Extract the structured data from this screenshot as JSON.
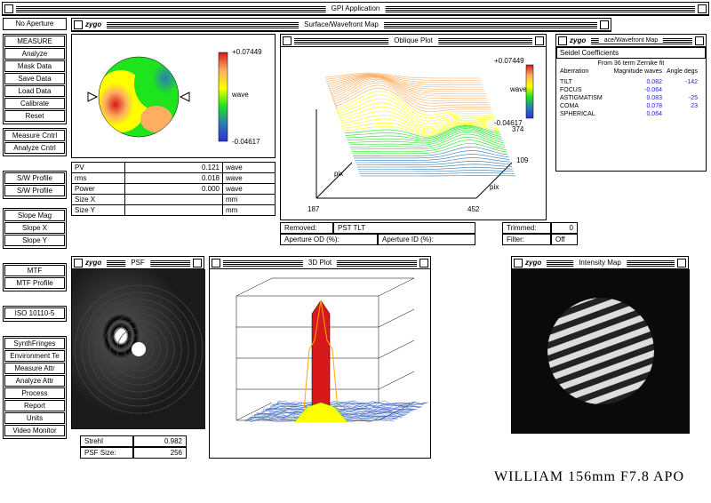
{
  "app": {
    "title": "GPI Application"
  },
  "aperture_label": "No Aperture",
  "left_buttons": {
    "g1": [
      "MEASURE",
      "Analyze",
      "Mask Data",
      "Save Data",
      "Load Data",
      "Calibrate",
      "Reset"
    ],
    "g2": [
      "Measure Cntrl",
      "Analyze Cntrl"
    ],
    "g3": [
      "S/W Profile",
      "S/W Profile"
    ],
    "g4": [
      "Slope Mag",
      "Slope X",
      "Slope Y"
    ],
    "g5": [
      "MTF",
      "MTF Profile"
    ],
    "g6": [
      "ISO 10110-5"
    ],
    "g7": [
      "SynthFringes",
      "Environment Te",
      "Measure Attr",
      "Analyze Attr",
      "Process",
      "Report",
      "Units",
      "Video Monitor"
    ]
  },
  "wavefront": {
    "title": "Surface/Wavefront Map",
    "scale_max": "+0.07449",
    "scale_min": "-0.04617",
    "scale_unit": "wave"
  },
  "stats": {
    "rows": [
      [
        "PV",
        "0.121",
        "wave"
      ],
      [
        "rms",
        "0.018",
        "wave"
      ],
      [
        "Power",
        "0.000",
        "wave"
      ],
      [
        "Size X",
        "",
        "mm"
      ],
      [
        "Size Y",
        "",
        "mm"
      ]
    ]
  },
  "oblique": {
    "title": "Oblique Plot",
    "z_max": "+0.07449",
    "z_min": "-0.04617",
    "z_unit": "wave",
    "axis_y1": "374",
    "axis_y2": "109",
    "axis_x1": "187",
    "axis_x2": "452",
    "axis_unit": "pix"
  },
  "info_row": {
    "removed_label": "Removed:",
    "removed_val": "PST TLT",
    "trimmed_label": "Trimmed:",
    "trimmed_val": "0",
    "ap_od": "Aperture OD (%):",
    "ap_id": "Aperture ID (%):",
    "filter_label": "Filter:",
    "filter_val": "Off"
  },
  "seidel": {
    "title": "ace/Wavefront Map",
    "subtitle": "Seidel Coefficients",
    "note": "From 36 term Zernike fit",
    "hdr": [
      "Aberration",
      "Magnitude waves",
      "Angle degs"
    ],
    "rows": [
      [
        "TILT",
        "0.082",
        "-142"
      ],
      [
        "FOCUS",
        "-0.064",
        ""
      ],
      [
        "ASTIGMATISM",
        "0.083",
        "-25"
      ],
      [
        "COMA",
        "0.078",
        "23"
      ],
      [
        "SPHERICAL",
        "0.064",
        ""
      ]
    ]
  },
  "psf": {
    "title": "PSF",
    "strehl_label": "Strehl",
    "strehl_val": "0.982",
    "size_label": "PSF Size:",
    "size_val": "256"
  },
  "plot3d": {
    "title": "3D Plot"
  },
  "intensity": {
    "title": "Intensity Map"
  },
  "footer": "WILLIAM 156mm F7.8 APO",
  "colors": {
    "scale": [
      "#d7191c",
      "#fdae61",
      "#ffff00",
      "#1ee41e",
      "#2c7bb6",
      "#3030d0"
    ],
    "seidel_val": "#2020e0",
    "psf_bg": "#1a1a1a"
  }
}
